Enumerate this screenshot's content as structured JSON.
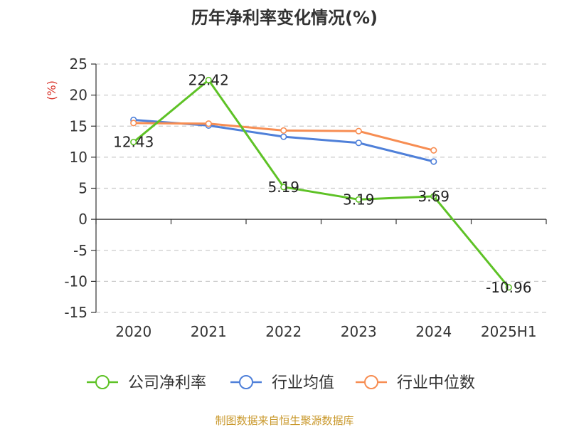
{
  "chart_data": {
    "type": "line",
    "title": "历年净利率变化情况(%)",
    "ylabel": "(%)",
    "categories": [
      "2020",
      "2021",
      "2022",
      "2023",
      "2024",
      "2025H1"
    ],
    "ylim": [
      -15,
      25
    ],
    "yticks": [
      -15,
      -10,
      -5,
      0,
      5,
      10,
      15,
      20,
      25
    ],
    "grid": true,
    "legend_position": "bottom",
    "series": [
      {
        "name": "公司净利率",
        "color": "#5ec226",
        "values": [
          12.43,
          22.42,
          5.19,
          3.19,
          3.69,
          -10.96
        ],
        "labels": [
          "12.43",
          "22.42",
          "5.19",
          "3.19",
          "3.69",
          "-10.96"
        ]
      },
      {
        "name": "行业均值",
        "color": "#4f80d9",
        "values": [
          16.0,
          15.1,
          13.3,
          12.3,
          9.3,
          null
        ]
      },
      {
        "name": "行业中位数",
        "color": "#f78d52",
        "values": [
          15.5,
          15.4,
          14.3,
          14.2,
          11.1,
          null
        ]
      }
    ],
    "source": "制图数据来自恒生聚源数据库",
    "ylabel_color": "#d9342b",
    "source_color": "#c9982b"
  }
}
